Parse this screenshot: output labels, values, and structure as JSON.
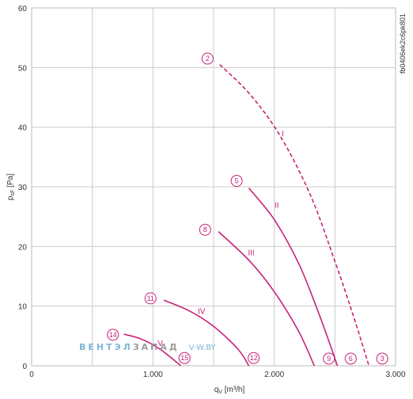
{
  "chart_data": {
    "type": "line",
    "xlabel": "q",
    "xlabel_sub": "V",
    "xlabel_unit": " [m³/h]",
    "ylabel": "p",
    "ylabel_sub": "sF",
    "ylabel_unit": " [Pa]",
    "xlim": [
      0,
      3000
    ],
    "ylim": [
      0,
      60
    ],
    "x_ticks": [
      0,
      1000,
      2000,
      3000
    ],
    "x_tick_labels": [
      "0",
      "1.000",
      "2.000",
      "3.000"
    ],
    "y_ticks": [
      0,
      10,
      20,
      30,
      40,
      50,
      60
    ],
    "y_tick_labels": [
      "0",
      "10",
      "20",
      "30",
      "40",
      "50",
      "60"
    ],
    "x_grid": [
      0,
      500,
      1000,
      1500,
      2000,
      2500,
      3000
    ],
    "y_grid": [
      0,
      10,
      20,
      30,
      40,
      50,
      60
    ],
    "grid": true,
    "code_label": "fb0406ek2c6pk801",
    "color": "#c8237a",
    "series": [
      {
        "name": "I",
        "dashed": true,
        "label_at": [
          2070,
          38.5
        ],
        "points": [
          [
            1550,
            50.5
          ],
          [
            1800,
            45.5
          ],
          [
            2050,
            38.5
          ],
          [
            2300,
            28.5
          ],
          [
            2500,
            17.5
          ],
          [
            2650,
            8.5
          ],
          [
            2780,
            0
          ]
        ]
      },
      {
        "name": "II",
        "dashed": false,
        "label_at": [
          2020,
          26.5
        ],
        "points": [
          [
            1790,
            29.8
          ],
          [
            2000,
            24.5
          ],
          [
            2200,
            17.2
          ],
          [
            2350,
            9.7
          ],
          [
            2470,
            3.0
          ],
          [
            2520,
            0
          ]
        ]
      },
      {
        "name": "III",
        "dashed": false,
        "label_at": [
          1810,
          18.5
        ],
        "points": [
          [
            1540,
            22.5
          ],
          [
            1800,
            17.5
          ],
          [
            2000,
            12.4
          ],
          [
            2200,
            5.8
          ],
          [
            2330,
            0
          ]
        ]
      },
      {
        "name": "IV",
        "dashed": false,
        "label_at": [
          1400,
          8.7
        ],
        "points": [
          [
            1090,
            11.0
          ],
          [
            1300,
            9.2
          ],
          [
            1500,
            6.6
          ],
          [
            1700,
            2.8
          ],
          [
            1790,
            0
          ]
        ]
      },
      {
        "name": "V",
        "dashed": false,
        "label_at": [
          1060,
          3.3
        ],
        "points": [
          [
            760,
            5.3
          ],
          [
            900,
            4.5
          ],
          [
            1050,
            2.9
          ],
          [
            1200,
            0.5
          ],
          [
            1230,
            0
          ]
        ]
      }
    ],
    "markers": [
      {
        "label": "2",
        "at": [
          1450,
          51.5
        ]
      },
      {
        "label": "5",
        "at": [
          1690,
          31.0
        ]
      },
      {
        "label": "8",
        "at": [
          1430,
          22.8
        ]
      },
      {
        "label": "11",
        "at": [
          980,
          11.3
        ]
      },
      {
        "label": "14",
        "at": [
          670,
          5.2
        ]
      },
      {
        "label": "15",
        "at": [
          1260,
          1.3
        ]
      },
      {
        "label": "12",
        "at": [
          1830,
          1.3
        ]
      },
      {
        "label": "9",
        "at": [
          2450,
          1.2
        ]
      },
      {
        "label": "6",
        "at": [
          2630,
          1.2
        ]
      },
      {
        "label": "3",
        "at": [
          2890,
          1.2
        ]
      }
    ]
  },
  "watermark": {
    "brand_part1": "ВЕНТЭЛ",
    "brand_part2": "ЗАПАД",
    "site": "V-W.BY",
    "color1": "#7fb5d8",
    "color2": "#9a9a9a"
  }
}
